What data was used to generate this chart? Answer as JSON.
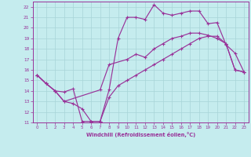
{
  "xlabel": "Windchill (Refroidissement éolien,°C)",
  "xlim": [
    -0.5,
    23.5
  ],
  "ylim": [
    11,
    22.5
  ],
  "xticks": [
    0,
    1,
    2,
    3,
    4,
    5,
    6,
    7,
    8,
    9,
    10,
    11,
    12,
    13,
    14,
    15,
    16,
    17,
    18,
    19,
    20,
    21,
    22,
    23
  ],
  "yticks": [
    11,
    12,
    13,
    14,
    15,
    16,
    17,
    18,
    19,
    20,
    21,
    22
  ],
  "bg_color": "#c5ecee",
  "grid_color": "#a8d4d8",
  "line_color": "#993399",
  "line1_x": [
    0,
    1,
    2,
    3,
    4,
    5,
    6,
    7,
    8,
    9,
    10,
    11,
    12,
    13,
    14,
    15,
    16,
    17,
    18,
    19,
    20,
    21,
    22,
    23
  ],
  "line1_y": [
    15.5,
    14.7,
    14.0,
    13.9,
    14.2,
    11.1,
    11.1,
    11.1,
    14.1,
    19.0,
    21.0,
    21.0,
    20.8,
    22.2,
    21.4,
    21.2,
    21.4,
    21.6,
    21.6,
    20.4,
    20.5,
    18.4,
    17.6,
    15.8
  ],
  "line2_x": [
    0,
    1,
    2,
    3,
    4,
    5,
    6,
    7,
    8,
    9,
    10,
    11,
    12,
    13,
    14,
    15,
    16,
    17,
    18,
    19,
    20,
    21,
    22,
    23
  ],
  "line2_y": [
    15.5,
    14.7,
    14.0,
    13.0,
    12.8,
    12.3,
    11.1,
    11.1,
    13.4,
    14.5,
    15.0,
    15.5,
    16.0,
    16.5,
    17.0,
    17.5,
    18.0,
    18.5,
    19.0,
    19.2,
    19.2,
    18.5,
    16.0,
    15.8
  ],
  "line3_x": [
    0,
    1,
    2,
    3,
    7,
    8,
    10,
    11,
    12,
    13,
    14,
    15,
    16,
    17,
    18,
    19,
    20,
    21,
    22,
    23
  ],
  "line3_y": [
    15.5,
    14.7,
    14.0,
    13.0,
    14.1,
    16.5,
    17.0,
    17.5,
    17.2,
    18.0,
    18.5,
    19.0,
    19.2,
    19.5,
    19.5,
    19.3,
    19.0,
    18.5,
    16.0,
    15.8
  ]
}
